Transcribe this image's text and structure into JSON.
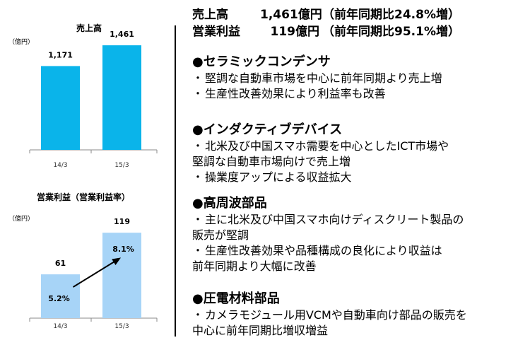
{
  "charts": {
    "sales": {
      "title": "売上高",
      "unit": "（億円）"
    },
    "profit": {
      "title": "営業利益（営業利益率）",
      "unit": "（億円）"
    }
  },
  "chart_data": [
    {
      "type": "bar",
      "title": "売上高",
      "ylabel": "（億円）",
      "categories": [
        "14/3",
        "15/3"
      ],
      "values": [
        1171,
        1461
      ],
      "data_labels": [
        "1,171",
        "1,461"
      ],
      "ylim": [
        0,
        1600
      ],
      "color": "#0ab4ea",
      "grid": false
    },
    {
      "type": "bar",
      "title": "営業利益（営業利益率）",
      "ylabel": "（億円）",
      "categories": [
        "14/3",
        "15/3"
      ],
      "values": [
        61,
        119
      ],
      "data_labels": [
        "61",
        "119"
      ],
      "rates": [
        5.2,
        8.1
      ],
      "rate_labels": [
        "5.2%",
        "8.1%"
      ],
      "ylim": [
        0,
        130
      ],
      "color": "#a7d4f7",
      "grid": false
    }
  ],
  "summary": [
    {
      "label": "売上高",
      "value": "1,461億円",
      "change": "（前年同期比24.8%増）"
    },
    {
      "label": "営業利益",
      "value": "119億円",
      "change": "（前年同期比95.1%増）"
    }
  ],
  "sections": [
    {
      "heading": "●セラミックコンデンサ",
      "bullets": [
        [
          "堅調な自動車市場を中心に前年同期より売上増"
        ],
        [
          "生産性改善効果により利益率も改善"
        ]
      ]
    },
    {
      "heading": "●インダクティブデバイス",
      "bullets": [
        [
          "北米及び中国スマホ需要を中心としたICT市場や",
          "堅調な自動車市場向けで売上増"
        ],
        [
          "操業度アップによる収益拡大"
        ]
      ]
    },
    {
      "heading": "●高周波部品",
      "bullets": [
        [
          "主に北米及び中国スマホ向けディスクリート製品の",
          "販売が堅調"
        ],
        [
          "生産性改善効果や品種構成の良化により収益は",
          "前年同期より大幅に改善"
        ]
      ]
    },
    {
      "heading": "●圧電材料部品",
      "bullets": [
        [
          "カメラモジュール用VCMや自動車向け部品の販売を",
          "中心に前年同期比増収増益"
        ]
      ]
    }
  ],
  "bullet_mark": "・"
}
